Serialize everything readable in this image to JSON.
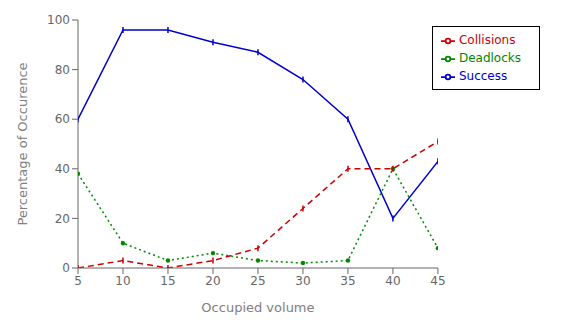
{
  "chart_data": {
    "type": "line",
    "xlabel": "Occupied volume",
    "ylabel": "Percentage of Occurence",
    "x": [
      5,
      10,
      15,
      20,
      25,
      30,
      35,
      40,
      45
    ],
    "series": [
      {
        "name": "Success",
        "color": "#0000cc",
        "values": [
          60,
          96,
          96,
          91,
          87,
          76,
          60,
          20,
          43
        ],
        "line_style": "solid",
        "marker": "vline"
      },
      {
        "name": "Deadlocks",
        "color": "#008800",
        "values": [
          38,
          10,
          3,
          6,
          3,
          2,
          3,
          40,
          8
        ],
        "line_style": "dotted",
        "marker": "point"
      },
      {
        "name": "Collisions",
        "color": "#cc0000",
        "values": [
          0,
          3,
          0,
          3,
          8,
          24,
          40,
          40,
          51
        ],
        "line_style": "dashed",
        "marker": "vline"
      }
    ],
    "xlim": [
      5,
      45
    ],
    "ylim": [
      0,
      100
    ],
    "xticks": [
      5,
      10,
      15,
      20,
      25,
      30,
      35,
      40,
      45
    ],
    "yticks": [
      0,
      20,
      40,
      60,
      80,
      100
    ],
    "grid": false,
    "legend": "upper right"
  }
}
